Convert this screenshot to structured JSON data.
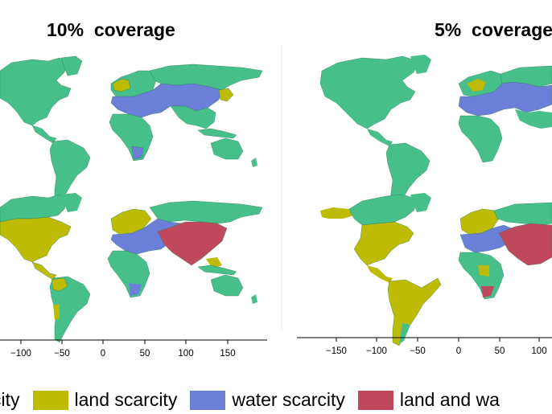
{
  "panels": [
    {
      "title": "10%  coverage",
      "x_ticks": [
        "−100",
        "−50",
        "0",
        "50",
        "100",
        "150"
      ]
    },
    {
      "title": "5%  coverage",
      "x_ticks": [
        "−150",
        "−100",
        "−50",
        "0",
        "50",
        "100"
      ]
    }
  ],
  "legend": [
    {
      "label": "city",
      "color": "#46bf8b"
    },
    {
      "label": "land scarcity",
      "color": "#bebb05"
    },
    {
      "label": "water scarcity",
      "color": "#6b7fd9"
    },
    {
      "label": "land and wa",
      "color": "#c0485c"
    }
  ],
  "colors": {
    "no_scarcity": "#46bf8b",
    "land_scarcity": "#bebb05",
    "water_scarcity": "#6b7fd9",
    "land_and_water_scarcity": "#c0485c"
  }
}
